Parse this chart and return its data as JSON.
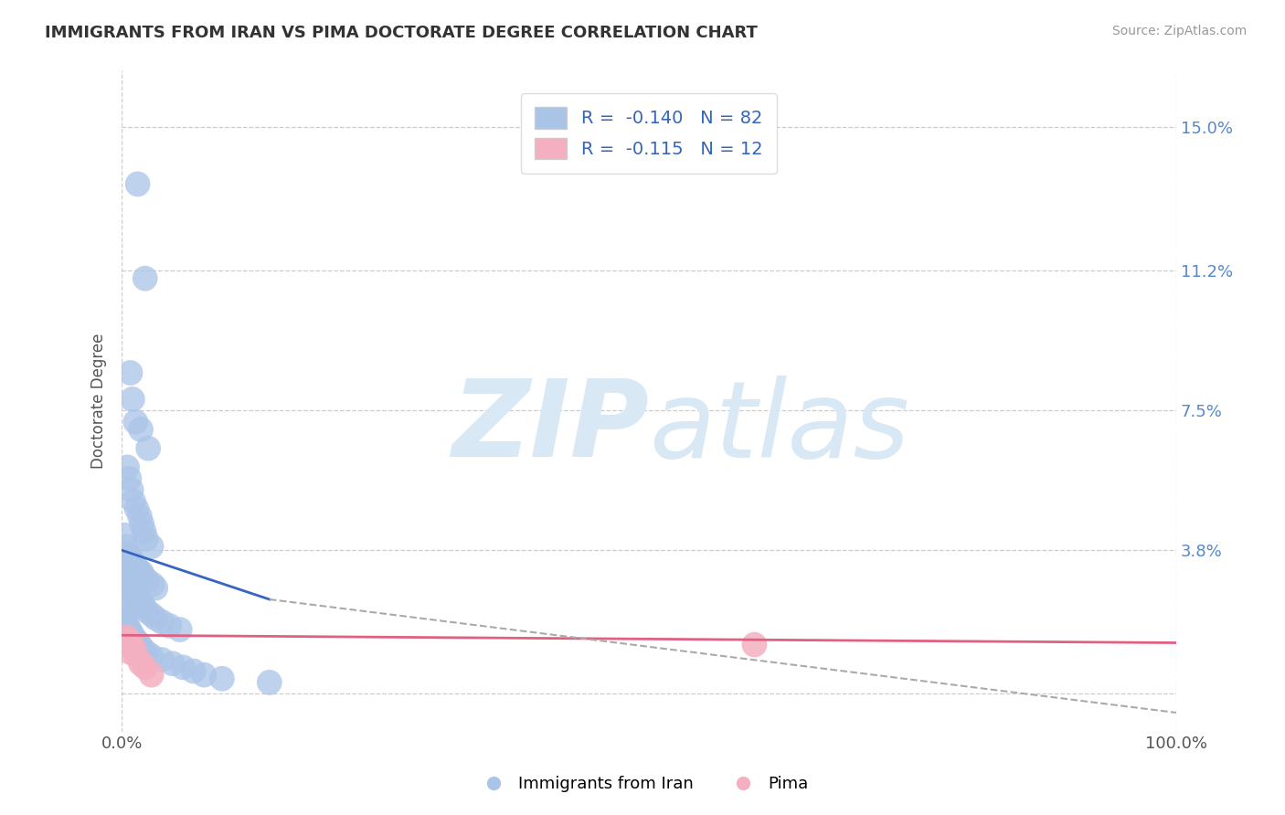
{
  "title": "IMMIGRANTS FROM IRAN VS PIMA DOCTORATE DEGREE CORRELATION CHART",
  "source_text": "Source: ZipAtlas.com",
  "ylabel": "Doctorate Degree",
  "xlim": [
    0.0,
    100.0
  ],
  "ylim": [
    -1.0,
    16.5
  ],
  "yticks": [
    0.0,
    3.8,
    7.5,
    11.2,
    15.0
  ],
  "ytick_labels": [
    "",
    "3.8%",
    "7.5%",
    "11.2%",
    "15.0%"
  ],
  "xtick_labels": [
    "0.0%",
    "100.0%"
  ],
  "legend_r1": "R =  -0.140   N = 82",
  "legend_r2": "R =  -0.115   N = 12",
  "legend_label1": "Immigrants from Iran",
  "legend_label2": "Pima",
  "blue_color": "#aac4e8",
  "pink_color": "#f4b0c0",
  "blue_line_color": "#3565c0",
  "pink_line_color": "#e06080",
  "dashed_line_color": "#aaaaaa",
  "background_color": "#ffffff",
  "grid_color": "#cccccc",
  "watermark_zip": "ZIP",
  "watermark_atlas": "atlas",
  "watermark_color": "#d8e8f5",
  "blue_scatter_x": [
    1.5,
    2.2,
    0.8,
    1.0,
    1.3,
    1.8,
    2.5,
    0.5,
    0.7,
    0.9,
    1.1,
    1.4,
    1.7,
    1.9,
    2.1,
    2.3,
    2.8,
    0.3,
    0.4,
    0.6,
    0.8,
    0.9,
    1.0,
    1.1,
    1.2,
    1.4,
    1.5,
    1.7,
    1.9,
    2.0,
    2.4,
    2.9,
    3.2,
    0.2,
    0.3,
    0.4,
    0.5,
    0.6,
    0.7,
    0.7,
    0.8,
    0.9,
    1.0,
    1.1,
    1.2,
    1.3,
    1.4,
    1.5,
    1.7,
    1.9,
    2.1,
    2.3,
    2.8,
    3.2,
    3.8,
    4.5,
    5.5,
    0.1,
    0.2,
    0.3,
    0.3,
    0.4,
    0.5,
    0.6,
    0.7,
    0.8,
    0.9,
    1.0,
    1.1,
    1.3,
    1.4,
    1.7,
    1.9,
    2.3,
    2.8,
    3.8,
    4.8,
    5.8,
    6.8,
    7.8,
    9.5,
    14.0
  ],
  "blue_scatter_y": [
    13.5,
    11.0,
    8.5,
    7.8,
    7.2,
    7.0,
    6.5,
    6.0,
    5.7,
    5.4,
    5.1,
    4.9,
    4.7,
    4.5,
    4.3,
    4.1,
    3.9,
    4.2,
    3.9,
    3.7,
    3.6,
    3.5,
    3.5,
    3.4,
    3.4,
    3.3,
    3.3,
    3.2,
    3.2,
    3.1,
    3.0,
    2.9,
    2.8,
    3.2,
    3.1,
    3.0,
    3.0,
    2.9,
    2.9,
    2.8,
    2.8,
    2.7,
    2.7,
    2.7,
    2.6,
    2.6,
    2.6,
    2.5,
    2.5,
    2.4,
    2.3,
    2.2,
    2.1,
    2.0,
    1.9,
    1.8,
    1.7,
    2.2,
    2.1,
    2.0,
    1.9,
    1.8,
    1.8,
    1.7,
    1.7,
    1.6,
    1.6,
    1.5,
    1.5,
    1.4,
    1.4,
    1.3,
    1.2,
    1.1,
    1.0,
    0.9,
    0.8,
    0.7,
    0.6,
    0.5,
    0.4,
    0.3
  ],
  "pink_scatter_x": [
    0.4,
    0.7,
    0.9,
    1.1,
    1.4,
    1.8,
    2.2,
    2.8,
    0.2,
    0.5,
    0.8,
    60.0
  ],
  "pink_scatter_y": [
    1.5,
    1.4,
    1.3,
    1.2,
    1.0,
    0.8,
    0.7,
    0.5,
    1.4,
    1.3,
    1.1,
    1.3
  ],
  "blue_trend_x0": 0.0,
  "blue_trend_x1": 14.0,
  "blue_trend_y0": 3.8,
  "blue_trend_y1": 2.5,
  "pink_trend_x0": 0.0,
  "pink_trend_x1": 100.0,
  "pink_trend_y0": 1.55,
  "pink_trend_y1": 1.35,
  "dashed_trend_x0": 14.0,
  "dashed_trend_x1": 100.0,
  "dashed_trend_y0": 2.5,
  "dashed_trend_y1": -0.5
}
